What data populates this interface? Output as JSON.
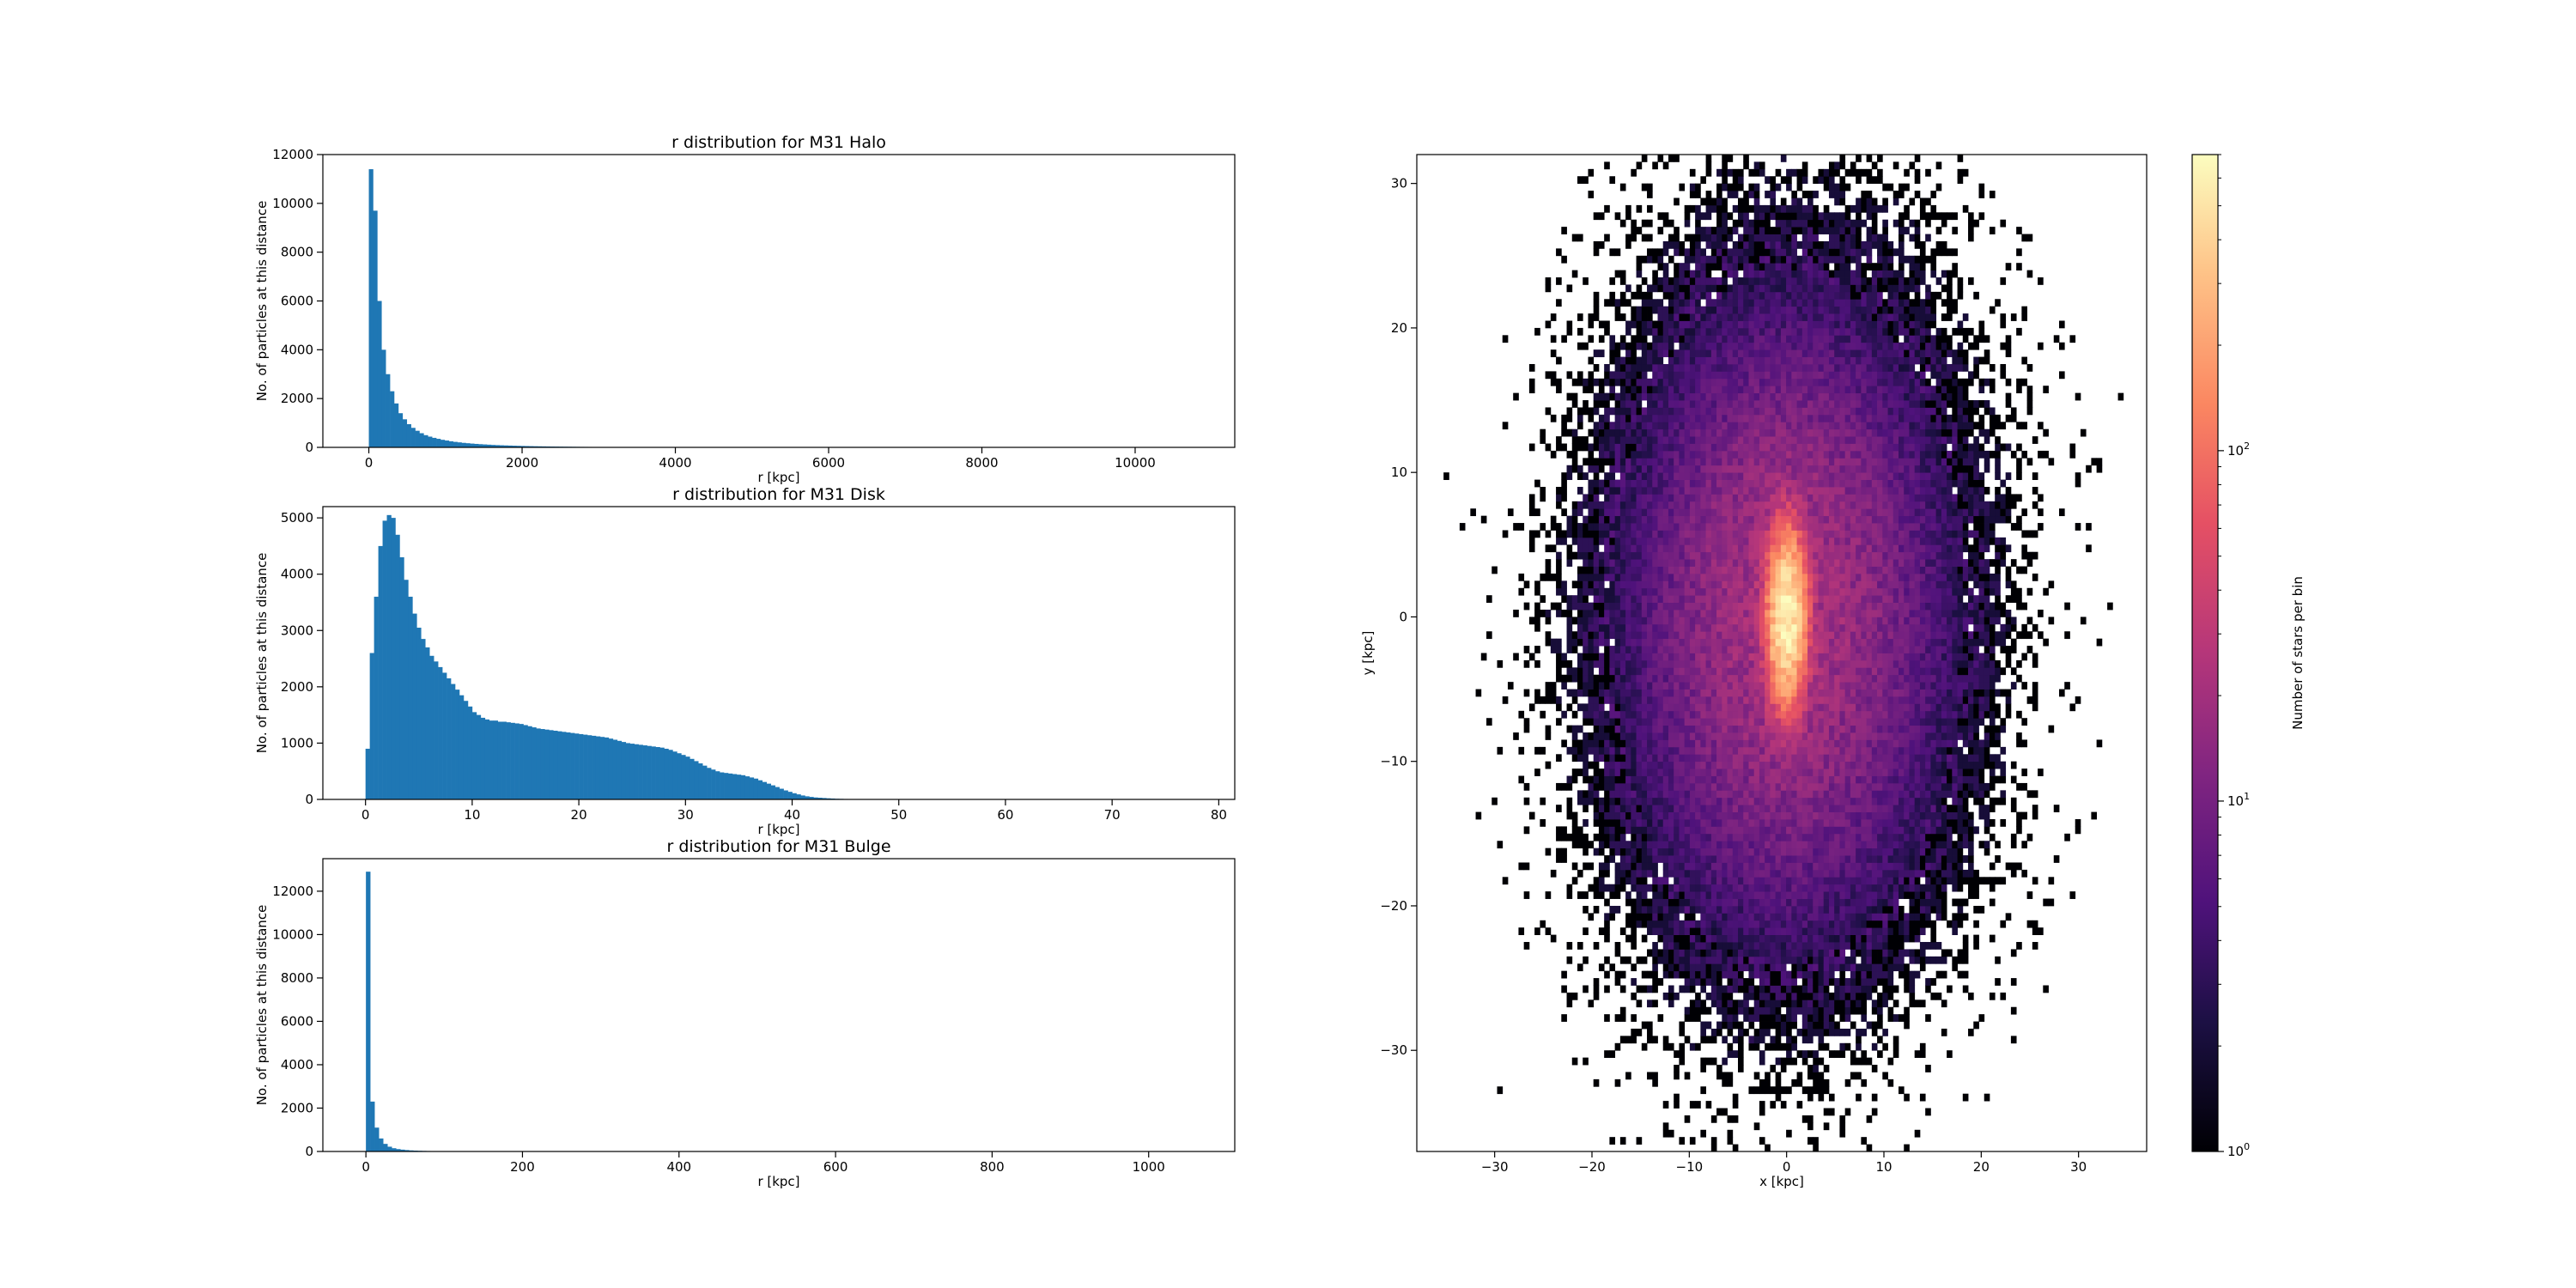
{
  "chart_data": [
    {
      "type": "bar",
      "title": "r distribution for M31 Halo",
      "xlabel": "r [kpc]",
      "ylabel": "No. of particles at this distance",
      "xlim": [
        -600,
        11300
      ],
      "ylim": [
        0,
        12000
      ],
      "xticks": [
        0,
        2000,
        4000,
        6000,
        8000,
        10000
      ],
      "yticks": [
        0,
        2000,
        4000,
        6000,
        8000,
        10000,
        12000
      ],
      "color": "#1f77b4",
      "bin_width": 55,
      "bin_start": 0,
      "values": [
        11400,
        9700,
        6000,
        4000,
        3000,
        2300,
        1800,
        1400,
        1150,
        950,
        800,
        680,
        580,
        500,
        440,
        390,
        350,
        310,
        280,
        250,
        225,
        205,
        185,
        170,
        155,
        142,
        130,
        120,
        110,
        100,
        92,
        86,
        80,
        74,
        68,
        63,
        58,
        54,
        50,
        46,
        43,
        40,
        37,
        34,
        32,
        30,
        28,
        26,
        24,
        22,
        20,
        19,
        18,
        17,
        16,
        15,
        14,
        13,
        12,
        11,
        10,
        10,
        9,
        9,
        8,
        8,
        7,
        7,
        6,
        6,
        6,
        5,
        5,
        5,
        4,
        4,
        4,
        4,
        3,
        3,
        3,
        3,
        3,
        3,
        2,
        2,
        2,
        2,
        2,
        2,
        2,
        2,
        2,
        2,
        1,
        1,
        1,
        1,
        1,
        1,
        2,
        1,
        1,
        1,
        1,
        1,
        1,
        1,
        2,
        1,
        1,
        1,
        1,
        1,
        1,
        1,
        1,
        1,
        1,
        1,
        1,
        1,
        1,
        1,
        1,
        1,
        1,
        1,
        1,
        1,
        1,
        1,
        1,
        1,
        1,
        1,
        1,
        1,
        1,
        1,
        1,
        1,
        1,
        1,
        1,
        1,
        1,
        1,
        1,
        1,
        1,
        1,
        1,
        1,
        1,
        1,
        1,
        1,
        1,
        1,
        1,
        1
      ]
    },
    {
      "type": "bar",
      "title": "r distribution for M31 Disk",
      "xlabel": "r [kpc]",
      "ylabel": "No. of particles at this distance",
      "xlim": [
        -4,
        81.5
      ],
      "ylim": [
        0,
        5200
      ],
      "xticks": [
        0,
        10,
        20,
        30,
        40,
        50,
        60,
        70,
        80
      ],
      "yticks": [
        0,
        1000,
        2000,
        3000,
        4000,
        5000
      ],
      "color": "#1f77b4",
      "bin_width": 0.4,
      "bin_start": 0,
      "values": [
        900,
        2600,
        3600,
        4500,
        4950,
        5050,
        5000,
        4700,
        4300,
        3900,
        3600,
        3300,
        3050,
        2850,
        2700,
        2550,
        2450,
        2350,
        2250,
        2150,
        2050,
        1950,
        1850,
        1750,
        1650,
        1550,
        1500,
        1450,
        1420,
        1400,
        1400,
        1380,
        1380,
        1370,
        1360,
        1350,
        1340,
        1320,
        1300,
        1280,
        1260,
        1250,
        1240,
        1230,
        1220,
        1210,
        1200,
        1190,
        1180,
        1170,
        1160,
        1150,
        1140,
        1130,
        1120,
        1110,
        1100,
        1080,
        1060,
        1040,
        1020,
        1000,
        990,
        980,
        970,
        960,
        950,
        940,
        930,
        920,
        900,
        880,
        850,
        820,
        790,
        760,
        720,
        680,
        640,
        600,
        560,
        530,
        500,
        480,
        470,
        460,
        450,
        440,
        430,
        410,
        390,
        370,
        340,
        310,
        280,
        250,
        220,
        190,
        160,
        135,
        110,
        90,
        70,
        55,
        45,
        35,
        30,
        25,
        20,
        16,
        12,
        10,
        8,
        6,
        5,
        4,
        3,
        3,
        2,
        2,
        2,
        1,
        1,
        1,
        1,
        1,
        1,
        1
      ]
    },
    {
      "type": "bar",
      "title": "r distribution for M31 Bulge",
      "xlabel": "r [kpc]",
      "ylabel": "No. of particles at this distance",
      "xlim": [
        -55,
        1110
      ],
      "ylim": [
        0,
        13500
      ],
      "xticks": [
        0,
        200,
        400,
        600,
        800,
        1000
      ],
      "yticks": [
        0,
        2000,
        4000,
        6000,
        8000,
        10000,
        12000
      ],
      "color": "#1f77b4",
      "bin_width": 5.5,
      "bin_start": 0,
      "values": [
        12900,
        2300,
        1100,
        600,
        350,
        220,
        150,
        110,
        85,
        65,
        50,
        40,
        32,
        26,
        21,
        17,
        14,
        12,
        10,
        8,
        7,
        6,
        5,
        4,
        3,
        3,
        2,
        2,
        2,
        1,
        1,
        1,
        1,
        1
      ]
    },
    {
      "type": "heatmap",
      "xlabel": "x [kpc]",
      "ylabel": "y [kpc]",
      "xlim": [
        -38,
        37
      ],
      "ylim": [
        -37,
        32
      ],
      "xticks": [
        -30,
        -20,
        -10,
        0,
        10,
        20,
        30
      ],
      "yticks": [
        -30,
        -20,
        -10,
        0,
        10,
        20,
        30
      ],
      "colormap": "magma",
      "colorbar": {
        "label": "Number  of  stars  per  bin",
        "scale": "log",
        "range": [
          1,
          700
        ],
        "ticks": [
          1,
          10,
          100
        ],
        "tick_labels": [
          "10",
          "10",
          "10"
        ],
        "tick_exponents": [
          "0",
          "1",
          "2"
        ]
      },
      "distribution": {
        "center": [
          0,
          0
        ],
        "core_sigma": [
          1.0,
          3.0
        ],
        "disk_sigma": [
          9.0,
          12.0
        ],
        "peak": 700
      }
    }
  ]
}
